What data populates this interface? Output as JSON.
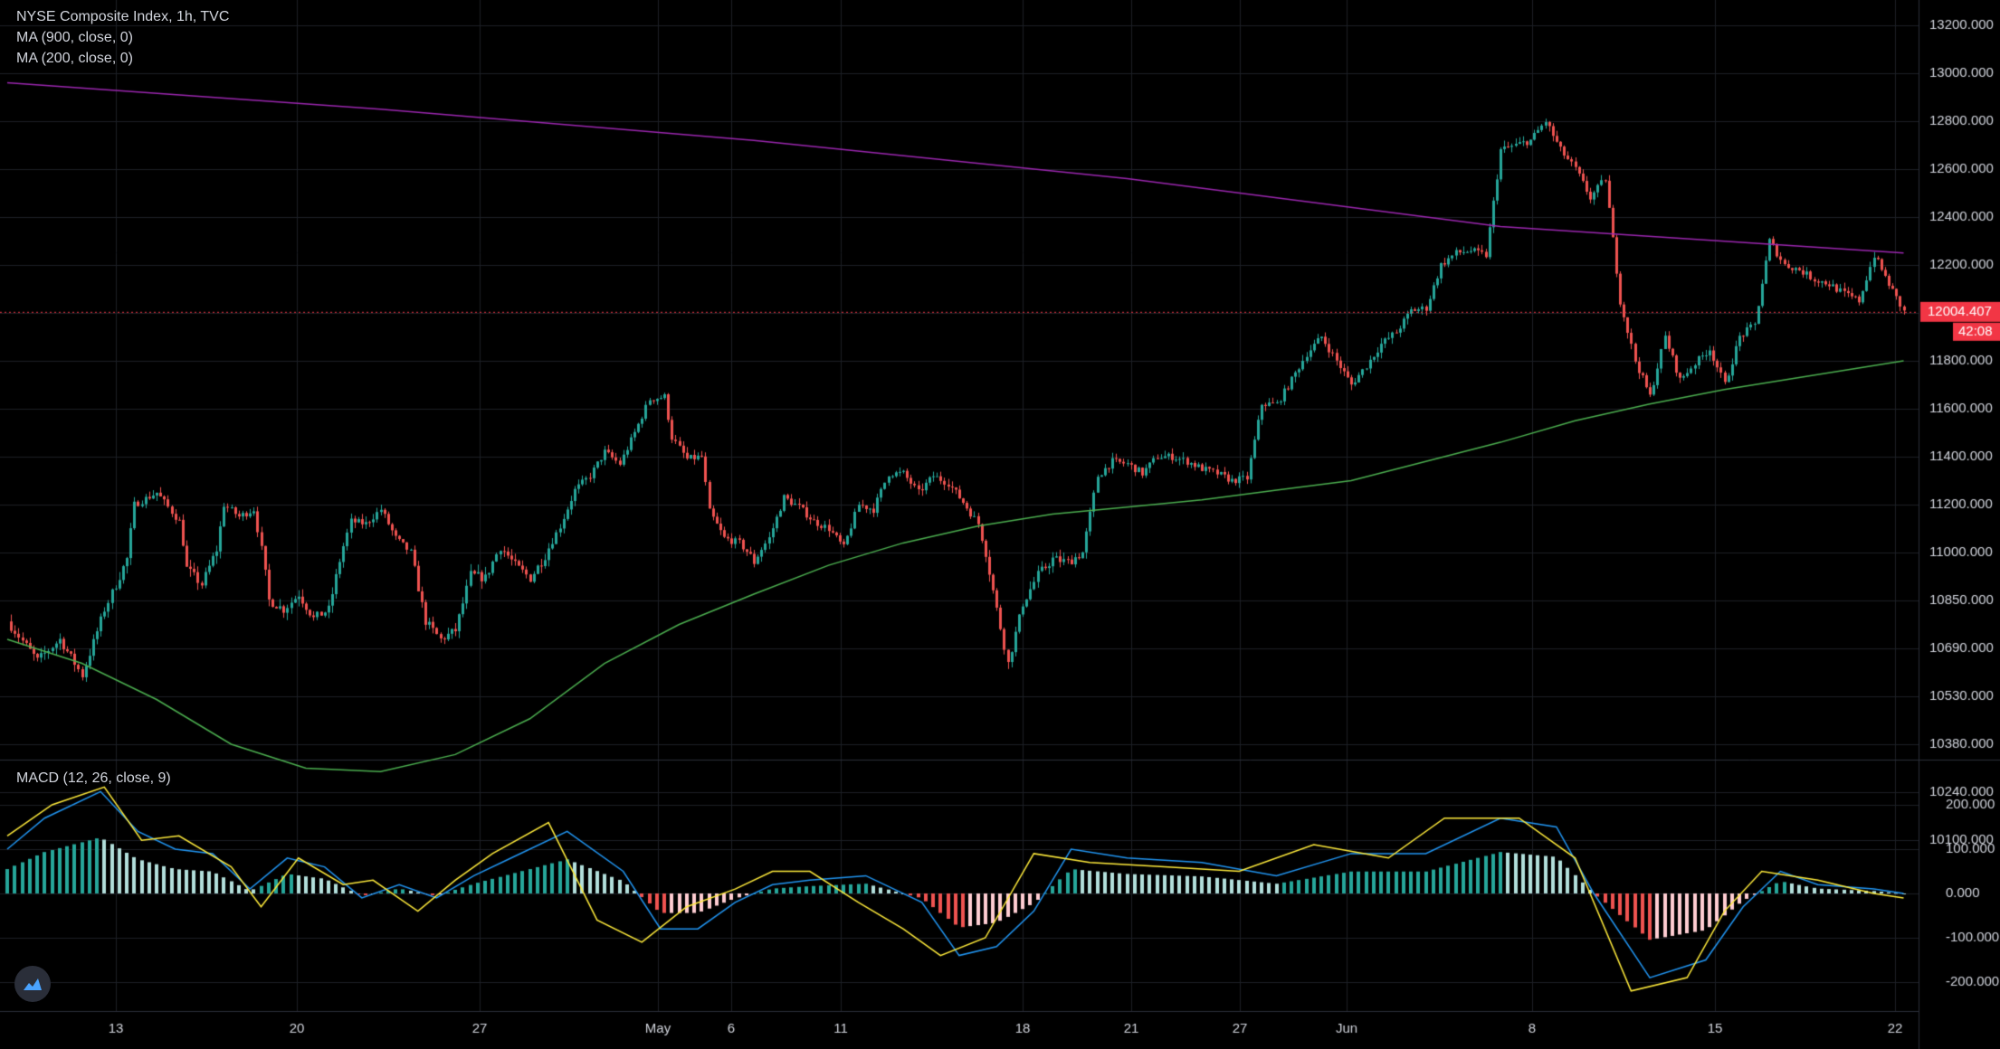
{
  "legend": {
    "title": "NYSE Composite Index, 1h, TVC",
    "ma900": "MA (900, close, 0)",
    "ma200": "MA (200, close, 0)",
    "macd": "MACD (12, 26, close, 9)"
  },
  "price_label": "12004.407",
  "countdown": "42:08",
  "colors": {
    "background": "#000000",
    "grid": "#1c1f26",
    "up": "#26a69a",
    "down": "#ef5350",
    "ma900": "#9c27b0",
    "ma200": "#4caf50",
    "macd": "#2196f3",
    "signal": "#ffeb3b",
    "hist_up_strong": "#26a69a",
    "hist_up_weak": "#b2dfdb",
    "hist_down_strong": "#ef5350",
    "hist_down_weak": "#ffcdd2",
    "axis_text": "#d1d4dc",
    "price_tag": "#f23645"
  },
  "chart_data": [
    {
      "type": "candlestick",
      "title": "NYSE Composite Index, 1h, TVC",
      "x_tick_labels": [
        "13",
        "20",
        "27",
        "May",
        "6",
        "11",
        "18",
        "21",
        "27",
        "Jun",
        "8",
        "15",
        "22"
      ],
      "y_tick_labels": [
        "13200.000",
        "13000.000",
        "12800.000",
        "12600.000",
        "12400.000",
        "12200.000",
        "12000.000",
        "11800.000",
        "11600.000",
        "11400.000",
        "11200.000",
        "11000.000",
        "10850.000",
        "10690.000",
        "10530.000",
        "10380.000",
        "10240.000",
        "10100.000"
      ],
      "ylim": [
        10100,
        13200
      ],
      "grid": true,
      "last_price": 12004.407,
      "close_path": [
        [
          0,
          10780
        ],
        [
          8,
          10650
        ],
        [
          14,
          10720
        ],
        [
          20,
          10600
        ],
        [
          26,
          10820
        ],
        [
          32,
          10980
        ],
        [
          34,
          11200
        ],
        [
          40,
          11250
        ],
        [
          46,
          11130
        ],
        [
          48,
          10950
        ],
        [
          52,
          10900
        ],
        [
          56,
          11010
        ],
        [
          58,
          11200
        ],
        [
          62,
          11150
        ],
        [
          66,
          11180
        ],
        [
          70,
          10850
        ],
        [
          74,
          10820
        ],
        [
          78,
          10870
        ],
        [
          82,
          10790
        ],
        [
          86,
          10820
        ],
        [
          92,
          11130
        ],
        [
          96,
          11120
        ],
        [
          100,
          11180
        ],
        [
          104,
          11060
        ],
        [
          108,
          11000
        ],
        [
          112,
          10780
        ],
        [
          116,
          10720
        ],
        [
          120,
          10750
        ],
        [
          124,
          10930
        ],
        [
          128,
          10920
        ],
        [
          132,
          11020
        ],
        [
          136,
          10960
        ],
        [
          140,
          10920
        ],
        [
          144,
          10990
        ],
        [
          148,
          11110
        ],
        [
          152,
          11260
        ],
        [
          156,
          11320
        ],
        [
          160,
          11420
        ],
        [
          164,
          11370
        ],
        [
          168,
          11500
        ],
        [
          172,
          11640
        ],
        [
          176,
          11650
        ],
        [
          178,
          11480
        ],
        [
          182,
          11390
        ],
        [
          186,
          11400
        ],
        [
          188,
          11170
        ],
        [
          192,
          11060
        ],
        [
          196,
          11040
        ],
        [
          200,
          10970
        ],
        [
          204,
          11060
        ],
        [
          208,
          11230
        ],
        [
          212,
          11190
        ],
        [
          216,
          11130
        ],
        [
          220,
          11100
        ],
        [
          224,
          11020
        ],
        [
          228,
          11200
        ],
        [
          232,
          11180
        ],
        [
          236,
          11330
        ],
        [
          240,
          11330
        ],
        [
          244,
          11250
        ],
        [
          248,
          11320
        ],
        [
          252,
          11290
        ],
        [
          256,
          11210
        ],
        [
          260,
          11120
        ],
        [
          264,
          10880
        ],
        [
          268,
          10640
        ],
        [
          272,
          10840
        ],
        [
          276,
          10930
        ],
        [
          280,
          10980
        ],
        [
          284,
          10970
        ],
        [
          288,
          11000
        ],
        [
          292,
          11320
        ],
        [
          296,
          11380
        ],
        [
          300,
          11370
        ],
        [
          304,
          11330
        ],
        [
          308,
          11400
        ],
        [
          312,
          11400
        ],
        [
          316,
          11380
        ],
        [
          320,
          11350
        ],
        [
          324,
          11330
        ],
        [
          328,
          11300
        ],
        [
          332,
          11310
        ],
        [
          336,
          11620
        ],
        [
          340,
          11620
        ],
        [
          344,
          11720
        ],
        [
          348,
          11830
        ],
        [
          352,
          11900
        ],
        [
          356,
          11800
        ],
        [
          360,
          11700
        ],
        [
          364,
          11780
        ],
        [
          368,
          11870
        ],
        [
          372,
          11920
        ],
        [
          376,
          12010
        ],
        [
          380,
          12020
        ],
        [
          384,
          12200
        ],
        [
          388,
          12250
        ],
        [
          392,
          12260
        ],
        [
          396,
          12240
        ],
        [
          400,
          12680
        ],
        [
          404,
          12700
        ],
        [
          408,
          12720
        ],
        [
          412,
          12800
        ],
        [
          416,
          12680
        ],
        [
          420,
          12600
        ],
        [
          424,
          12480
        ],
        [
          428,
          12560
        ],
        [
          432,
          12050
        ],
        [
          436,
          11800
        ],
        [
          440,
          11650
        ],
        [
          444,
          11900
        ],
        [
          448,
          11720
        ],
        [
          452,
          11790
        ],
        [
          456,
          11850
        ],
        [
          460,
          11700
        ],
        [
          464,
          11900
        ],
        [
          468,
          11950
        ],
        [
          472,
          12300
        ],
        [
          476,
          12200
        ],
        [
          480,
          12180
        ],
        [
          484,
          12140
        ],
        [
          488,
          12120
        ],
        [
          492,
          12080
        ],
        [
          496,
          12050
        ],
        [
          500,
          12240
        ],
        [
          504,
          12120
        ],
        [
          508,
          12004
        ]
      ],
      "series": [
        {
          "name": "MA (900, close, 0)",
          "points": [
            [
              0,
              12960
            ],
            [
              100,
              12850
            ],
            [
              200,
              12720
            ],
            [
              300,
              12560
            ],
            [
              400,
              12360
            ],
            [
              508,
              12250
            ]
          ]
        },
        {
          "name": "MA (200, close, 0)",
          "points": [
            [
              0,
              10720
            ],
            [
              20,
              10640
            ],
            [
              40,
              10520
            ],
            [
              60,
              10380
            ],
            [
              80,
              10310
            ],
            [
              100,
              10300
            ],
            [
              120,
              10350
            ],
            [
              140,
              10460
            ],
            [
              160,
              10640
            ],
            [
              180,
              10770
            ],
            [
              200,
              10870
            ],
            [
              220,
              10960
            ],
            [
              240,
              11040
            ],
            [
              260,
              11110
            ],
            [
              280,
              11160
            ],
            [
              300,
              11190
            ],
            [
              320,
              11220
            ],
            [
              340,
              11260
            ],
            [
              360,
              11300
            ],
            [
              380,
              11380
            ],
            [
              400,
              11460
            ],
            [
              420,
              11550
            ],
            [
              440,
              11620
            ],
            [
              460,
              11680
            ],
            [
              480,
              11730
            ],
            [
              508,
              11800
            ]
          ]
        }
      ]
    },
    {
      "type": "line",
      "title": "MACD (12, 26, close, 9)",
      "y_tick_labels": [
        "200.000",
        "100.000",
        "0.000",
        "-100.000",
        "-200.000"
      ],
      "ylim": [
        -260,
        240
      ],
      "series": [
        {
          "name": "MACD",
          "points": [
            [
              0,
              100
            ],
            [
              10,
              170
            ],
            [
              25,
              230
            ],
            [
              35,
              140
            ],
            [
              45,
              100
            ],
            [
              55,
              90
            ],
            [
              65,
              10
            ],
            [
              75,
              80
            ],
            [
              85,
              60
            ],
            [
              95,
              -10
            ],
            [
              105,
              20
            ],
            [
              115,
              -10
            ],
            [
              125,
              40
            ],
            [
              135,
              80
            ],
            [
              150,
              140
            ],
            [
              165,
              50
            ],
            [
              175,
              -80
            ],
            [
              185,
              -80
            ],
            [
              195,
              -20
            ],
            [
              205,
              20
            ],
            [
              215,
              30
            ],
            [
              230,
              40
            ],
            [
              245,
              -20
            ],
            [
              255,
              -140
            ],
            [
              265,
              -120
            ],
            [
              275,
              -40
            ],
            [
              285,
              100
            ],
            [
              300,
              80
            ],
            [
              320,
              70
            ],
            [
              340,
              40
            ],
            [
              360,
              90
            ],
            [
              380,
              90
            ],
            [
              400,
              170
            ],
            [
              415,
              150
            ],
            [
              425,
              0
            ],
            [
              440,
              -190
            ],
            [
              455,
              -150
            ],
            [
              465,
              -30
            ],
            [
              475,
              50
            ],
            [
              485,
              20
            ],
            [
              500,
              10
            ],
            [
              508,
              0
            ]
          ]
        },
        {
          "name": "Signal",
          "points": [
            [
              0,
              130
            ],
            [
              12,
              200
            ],
            [
              26,
              240
            ],
            [
              36,
              120
            ],
            [
              46,
              130
            ],
            [
              60,
              60
            ],
            [
              68,
              -30
            ],
            [
              78,
              80
            ],
            [
              90,
              20
            ],
            [
              98,
              30
            ],
            [
              110,
              -40
            ],
            [
              120,
              30
            ],
            [
              130,
              90
            ],
            [
              145,
              160
            ],
            [
              158,
              -60
            ],
            [
              170,
              -110
            ],
            [
              182,
              -30
            ],
            [
              195,
              10
            ],
            [
              205,
              50
            ],
            [
              215,
              50
            ],
            [
              228,
              -20
            ],
            [
              240,
              -80
            ],
            [
              250,
              -140
            ],
            [
              262,
              -100
            ],
            [
              275,
              90
            ],
            [
              290,
              70
            ],
            [
              310,
              60
            ],
            [
              330,
              50
            ],
            [
              350,
              110
            ],
            [
              370,
              80
            ],
            [
              385,
              170
            ],
            [
              405,
              170
            ],
            [
              420,
              80
            ],
            [
              435,
              -220
            ],
            [
              450,
              -190
            ],
            [
              460,
              -40
            ],
            [
              470,
              50
            ],
            [
              485,
              30
            ],
            [
              500,
              0
            ],
            [
              508,
              -10
            ]
          ]
        }
      ]
    }
  ]
}
